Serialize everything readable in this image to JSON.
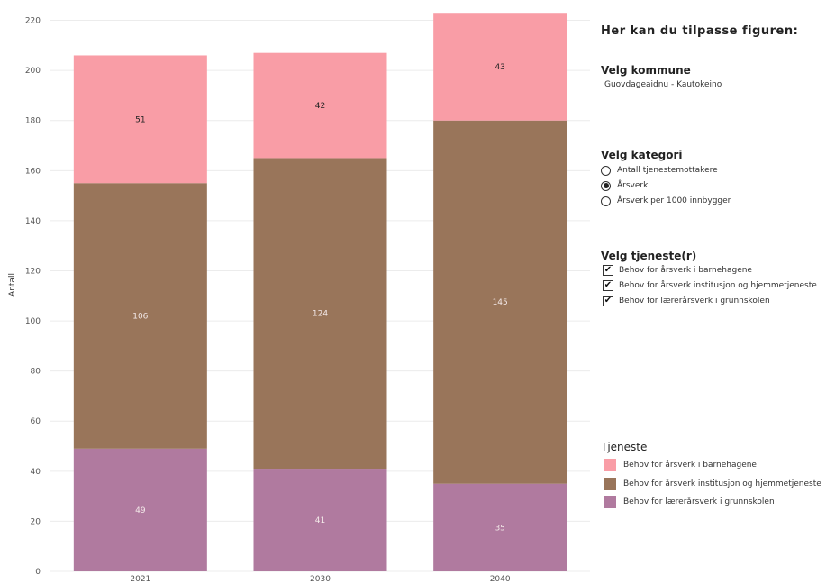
{
  "chart_data": {
    "type": "bar",
    "stacked": true,
    "categories": [
      "2021",
      "2030",
      "2040"
    ],
    "series": [
      {
        "name": "Behov for lærerårsverk i grunnskolen",
        "color": "#b07a9f",
        "values": [
          49,
          41,
          35
        ]
      },
      {
        "name": "Behov for årsverk institusjon og hjemmetjeneste",
        "color": "#99755a",
        "values": [
          106,
          124,
          145
        ]
      },
      {
        "name": "Behov for årsverk i barnehagene",
        "color": "#f99da6",
        "values": [
          51,
          42,
          43
        ]
      }
    ],
    "ylabel": "Antall",
    "xlabel": "",
    "ylim": [
      0,
      222
    ],
    "yticks": [
      0,
      20,
      40,
      60,
      80,
      100,
      120,
      140,
      160,
      180,
      200,
      220
    ],
    "grid": true
  },
  "panel": {
    "title": "Her kan du tilpasse figuren:",
    "kommune": {
      "title": "Velg kommune",
      "value": "Guovdageaidnu - Kautokeino"
    },
    "kategori": {
      "title": "Velg kategori",
      "options": [
        {
          "label": "Antall tjenestemottakere",
          "selected": false
        },
        {
          "label": "Årsverk",
          "selected": true
        },
        {
          "label": "Årsverk per 1000 innbygger",
          "selected": false
        }
      ]
    },
    "tjeneste": {
      "title": "Velg tjeneste(r)",
      "options": [
        {
          "label": "Behov for årsverk i barnehagene",
          "checked": true
        },
        {
          "label": "Behov for årsverk institusjon og hjemmetjeneste",
          "checked": true
        },
        {
          "label": "Behov for lærerårsverk i grunnskolen",
          "checked": true
        }
      ]
    },
    "check_glyph": "✔"
  },
  "legend": {
    "title": "Tjeneste",
    "items": [
      {
        "label": "Behov for årsverk i barnehagene",
        "color": "#f99da6"
      },
      {
        "label": "Behov for årsverk institusjon og hjemmetjeneste",
        "color": "#99755a"
      },
      {
        "label": "Behov for lærerårsverk i grunnskolen",
        "color": "#b07a9f"
      }
    ]
  }
}
